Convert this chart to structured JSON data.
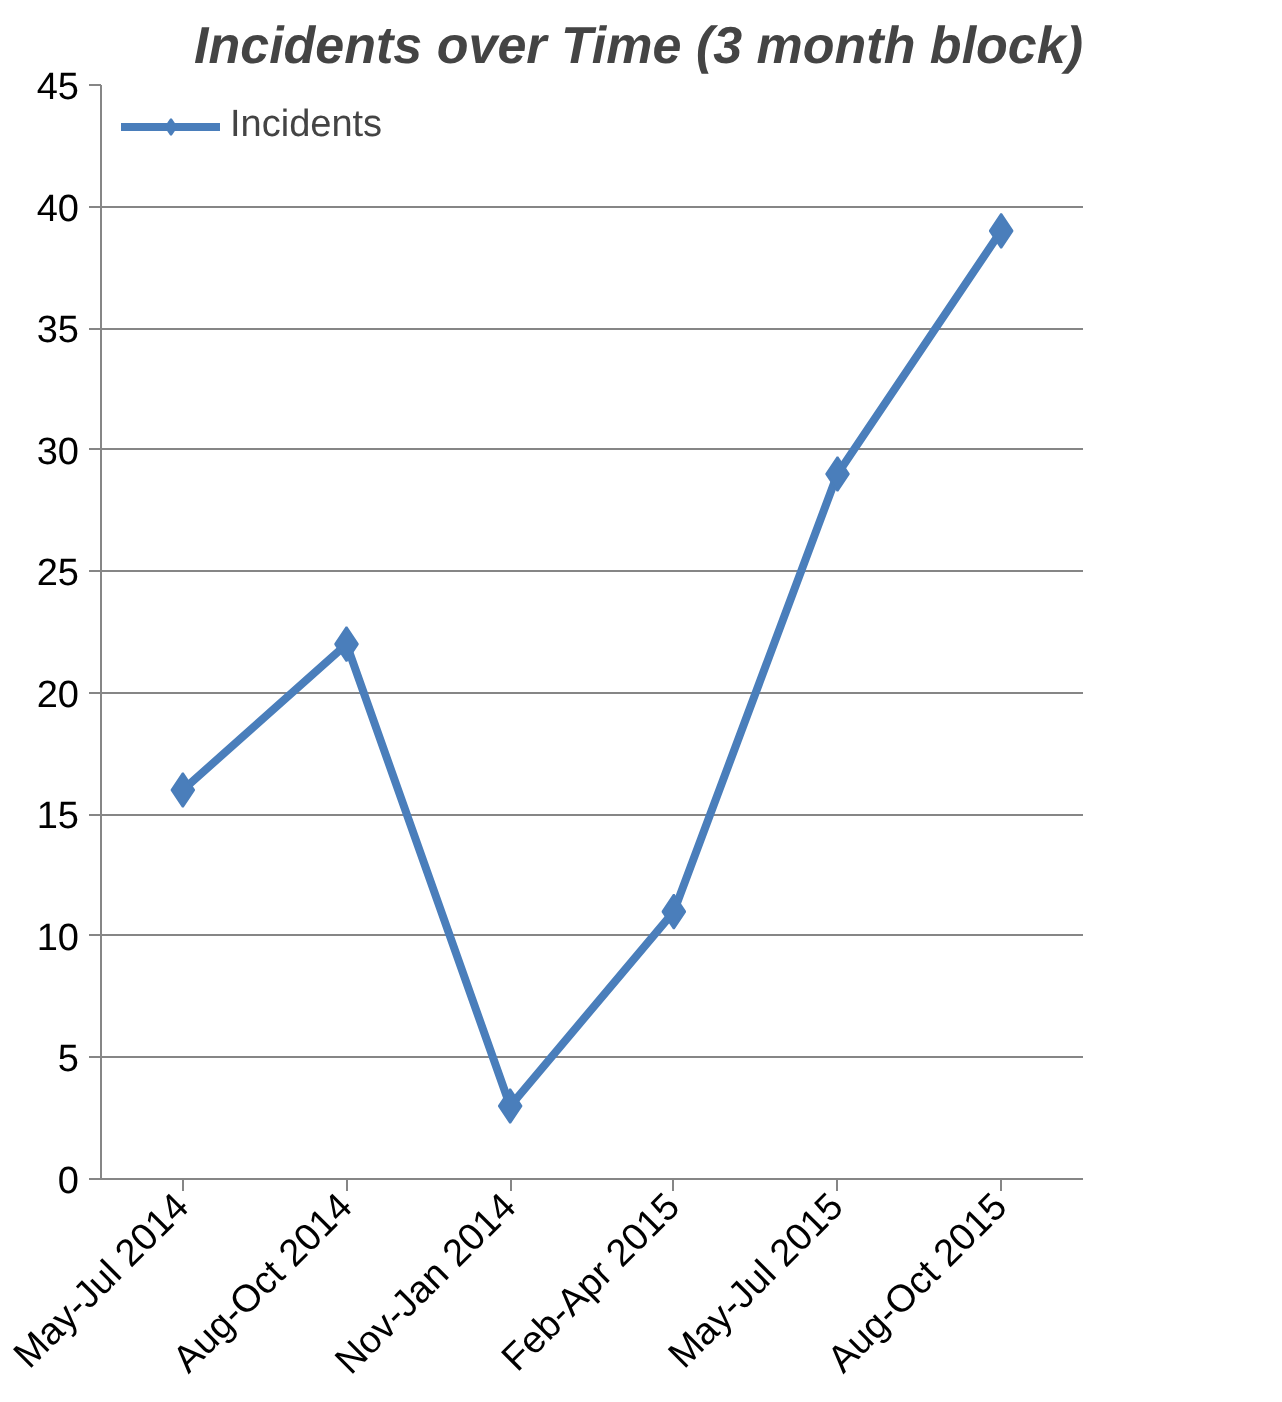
{
  "chart_data": {
    "type": "line",
    "title": "Incidents over Time (3 month block)",
    "categories": [
      "May-Jul 2014",
      "Aug-Oct 2014",
      "Nov-Jan 2014",
      "Feb-Apr 2015",
      "May-Jul 2015",
      "Aug-Oct 2015"
    ],
    "series": [
      {
        "name": "Incidents",
        "color": "#4a7ebb",
        "values": [
          16,
          22,
          3,
          11,
          29,
          39
        ]
      }
    ],
    "ylim": [
      0,
      45
    ],
    "yticks": [
      0,
      5,
      10,
      15,
      20,
      25,
      30,
      35,
      40,
      45
    ],
    "grid": "y",
    "legend": "top left",
    "marker": "diamond",
    "line_style": "solid"
  }
}
